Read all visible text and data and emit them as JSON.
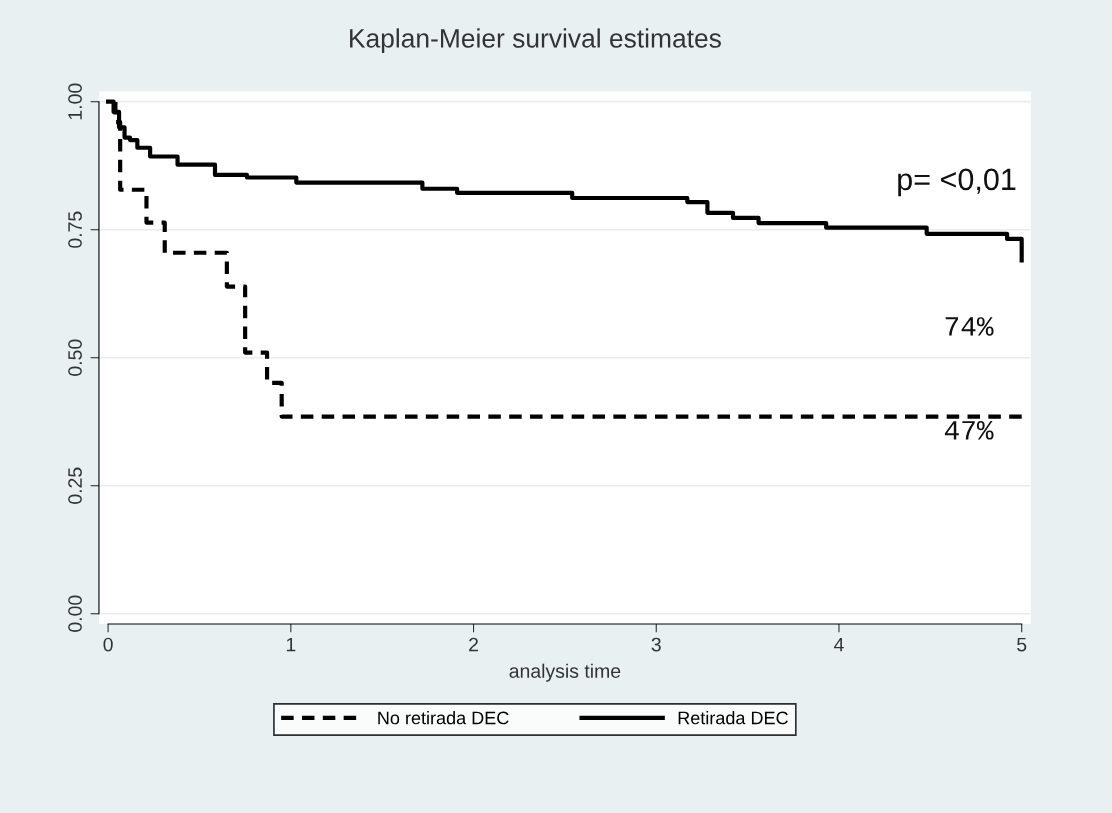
{
  "chart_data": {
    "type": "step",
    "title": "Kaplan-Meier survival estimates",
    "xlabel": "analysis time",
    "xlim": [
      -0.05,
      5.05
    ],
    "xticks": [
      0,
      1,
      2,
      3,
      4,
      5
    ],
    "ylim": [
      -0.02,
      1.02
    ],
    "yticks": [
      {
        "value": 0,
        "label": "0.00"
      },
      {
        "value": 0.25,
        "label": "0.25"
      },
      {
        "value": 0.5,
        "label": "0.50"
      },
      {
        "value": 0.75,
        "label": "0.75"
      },
      {
        "value": 1,
        "label": "1.00"
      }
    ],
    "grid": "y",
    "legend": "bottom",
    "marker": "none",
    "series": [
      {
        "name": "No retirada DEC",
        "color": "#000000",
        "line_style": "dashed",
        "x": [
          0,
          0.01,
          0.04,
          0.066,
          0.21,
          0.31,
          0.65,
          0.75,
          0.87,
          0.95,
          5
        ],
        "values": [
          1.0,
          1.0,
          0.96,
          0.828,
          0.764,
          0.705,
          0.639,
          0.51,
          0.451,
          0.385,
          0.385
        ]
      },
      {
        "name": "Retirada DEC",
        "color": "#000000",
        "line_style": "solid",
        "x": [
          0,
          0.01,
          0.03,
          0.06,
          0.09,
          0.12,
          0.16,
          0.23,
          0.38,
          0.585,
          0.76,
          1.03,
          1.72,
          1.91,
          2.54,
          3.17,
          3.28,
          3.42,
          3.56,
          3.93,
          4.48,
          4.92,
          5
        ],
        "values": [
          1.0,
          1.0,
          0.98,
          0.95,
          0.93,
          0.925,
          0.91,
          0.893,
          0.877,
          0.857,
          0.852,
          0.842,
          0.83,
          0.822,
          0.812,
          0.804,
          0.783,
          0.773,
          0.763,
          0.754,
          0.742,
          0.732,
          0.69
        ]
      }
    ],
    "annotations": [
      "p= <0,01",
      "74%",
      "47%"
    ]
  }
}
